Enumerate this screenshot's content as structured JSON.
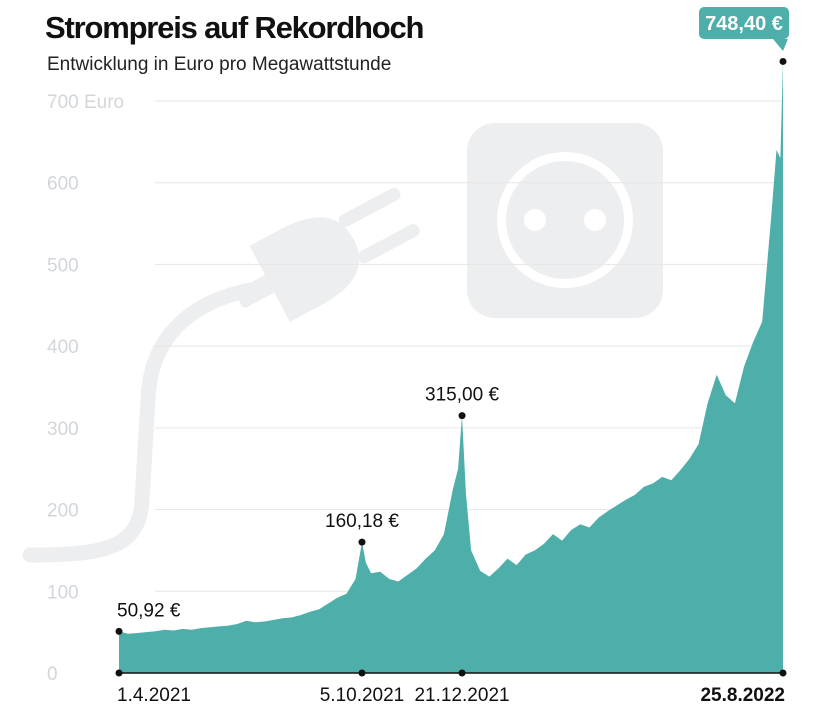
{
  "chart_data": {
    "type": "area",
    "title": "Strompreis auf Rekordhoch",
    "subtitle": "Entwicklung in Euro pro Megawattstunde",
    "y_unit": "Euro",
    "ylim": [
      0,
      700
    ],
    "yticks": [
      {
        "value": 0,
        "label": "0"
      },
      {
        "value": 100,
        "label": "100"
      },
      {
        "value": 200,
        "label": "200"
      },
      {
        "value": 300,
        "label": "300"
      },
      {
        "value": 400,
        "label": "400"
      },
      {
        "value": 500,
        "label": "500"
      },
      {
        "value": 600,
        "label": "600"
      },
      {
        "value": 700,
        "label": "700 Euro"
      }
    ],
    "grid": true,
    "colors": {
      "area": "#4eafaa",
      "grid": "#e6e6e6",
      "tick_label": "#d2d6da",
      "icon": "#eceef0",
      "badge": "#4eafaa"
    },
    "x_start": "2021-04-01",
    "x_end": "2022-08-25",
    "xticks": [
      {
        "date": "2021-04-01",
        "label": "1.4.2021",
        "bold": false
      },
      {
        "date": "2021-10-05",
        "label": "5.10.2021",
        "bold": false
      },
      {
        "date": "2021-12-21",
        "label": "21.12.2021",
        "bold": false
      },
      {
        "date": "2022-08-25",
        "label": "25.8.2022",
        "bold": true
      }
    ],
    "annotations": [
      {
        "date": "2021-04-01",
        "value": 50.92,
        "label": "50,92 €",
        "style": "plain"
      },
      {
        "date": "2021-10-05",
        "value": 160.18,
        "label": "160,18 €",
        "style": "plain"
      },
      {
        "date": "2021-12-21",
        "value": 315.0,
        "label": "315,00 €",
        "style": "plain"
      },
      {
        "date": "2022-08-25",
        "value": 748.4,
        "label": "748,40 €",
        "style": "badge"
      }
    ],
    "series": [
      {
        "points": [
          [
            "2021-04-01",
            50.92
          ],
          [
            "2021-04-08",
            48
          ],
          [
            "2021-04-15",
            49
          ],
          [
            "2021-04-22",
            50
          ],
          [
            "2021-04-29",
            51
          ],
          [
            "2021-05-06",
            53
          ],
          [
            "2021-05-13",
            52
          ],
          [
            "2021-05-20",
            54
          ],
          [
            "2021-05-27",
            53
          ],
          [
            "2021-06-03",
            55
          ],
          [
            "2021-06-10",
            56
          ],
          [
            "2021-06-17",
            57
          ],
          [
            "2021-06-24",
            58
          ],
          [
            "2021-07-01",
            60
          ],
          [
            "2021-07-08",
            64
          ],
          [
            "2021-07-15",
            62
          ],
          [
            "2021-07-22",
            63
          ],
          [
            "2021-07-29",
            65
          ],
          [
            "2021-08-05",
            67
          ],
          [
            "2021-08-12",
            68
          ],
          [
            "2021-08-19",
            71
          ],
          [
            "2021-08-26",
            75
          ],
          [
            "2021-09-02",
            78
          ],
          [
            "2021-09-09",
            85
          ],
          [
            "2021-09-16",
            92
          ],
          [
            "2021-09-23",
            97
          ],
          [
            "2021-09-30",
            115
          ],
          [
            "2021-10-05",
            160.18
          ],
          [
            "2021-10-08",
            135
          ],
          [
            "2021-10-12",
            122
          ],
          [
            "2021-10-19",
            124
          ],
          [
            "2021-10-26",
            115
          ],
          [
            "2021-11-02",
            112
          ],
          [
            "2021-11-09",
            120
          ],
          [
            "2021-11-16",
            128
          ],
          [
            "2021-11-23",
            140
          ],
          [
            "2021-11-30",
            150
          ],
          [
            "2021-12-07",
            170
          ],
          [
            "2021-12-14",
            225
          ],
          [
            "2021-12-18",
            250
          ],
          [
            "2021-12-21",
            315.0
          ],
          [
            "2021-12-24",
            220
          ],
          [
            "2021-12-28",
            150
          ],
          [
            "2022-01-04",
            125
          ],
          [
            "2022-01-11",
            118
          ],
          [
            "2022-01-18",
            128
          ],
          [
            "2022-01-25",
            140
          ],
          [
            "2022-02-01",
            132
          ],
          [
            "2022-02-08",
            145
          ],
          [
            "2022-02-15",
            150
          ],
          [
            "2022-02-22",
            158
          ],
          [
            "2022-03-01",
            170
          ],
          [
            "2022-03-08",
            162
          ],
          [
            "2022-03-15",
            175
          ],
          [
            "2022-03-22",
            182
          ],
          [
            "2022-03-29",
            178
          ],
          [
            "2022-04-05",
            190
          ],
          [
            "2022-04-12",
            198
          ],
          [
            "2022-04-19",
            205
          ],
          [
            "2022-04-26",
            212
          ],
          [
            "2022-05-03",
            218
          ],
          [
            "2022-05-10",
            228
          ],
          [
            "2022-05-17",
            232
          ],
          [
            "2022-05-24",
            240
          ],
          [
            "2022-05-31",
            236
          ],
          [
            "2022-06-07",
            248
          ],
          [
            "2022-06-14",
            262
          ],
          [
            "2022-06-21",
            280
          ],
          [
            "2022-06-28",
            330
          ],
          [
            "2022-07-05",
            365
          ],
          [
            "2022-07-12",
            340
          ],
          [
            "2022-07-19",
            330
          ],
          [
            "2022-07-26",
            375
          ],
          [
            "2022-08-02",
            405
          ],
          [
            "2022-08-09",
            430
          ],
          [
            "2022-08-16",
            560
          ],
          [
            "2022-08-20",
            640
          ],
          [
            "2022-08-23",
            630
          ],
          [
            "2022-08-25",
            748.4
          ]
        ]
      }
    ]
  }
}
